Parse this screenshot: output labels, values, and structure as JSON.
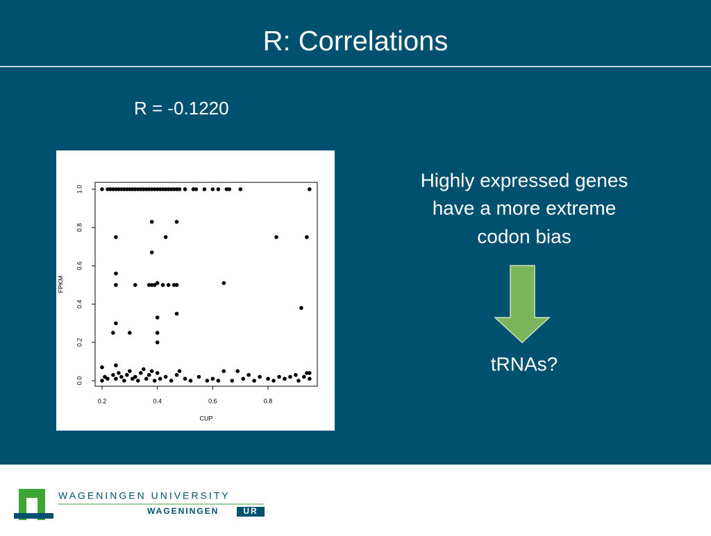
{
  "slide": {
    "title": "R: Correlations",
    "subtitle": "R = -0.1220",
    "text": [
      "Highly expressed genes",
      "have a more extreme",
      "codon bias"
    ],
    "note": "tRNAs?",
    "logo": {
      "name": "WAGENINGEN UNIVERSITY",
      "sub": "WAGENINGEN",
      "badge": "UR"
    }
  },
  "chart_data": {
    "type": "scatter",
    "xlabel": "CUP",
    "ylabel": "FPKM",
    "color": "#000000",
    "xlim": [
      0.175,
      0.978
    ],
    "ylim": [
      -0.029,
      1.036
    ],
    "xticks": [
      0.2,
      0.4,
      0.6,
      0.8
    ],
    "yticks": [
      {
        "value": 0,
        "label": "0.0"
      },
      0.2,
      0.4,
      0.6,
      0.8,
      {
        "value": 1,
        "label": "1.0"
      }
    ],
    "x": [
      0.2,
      0.22,
      0.23,
      0.24,
      0.25,
      0.26,
      0.27,
      0.28,
      0.29,
      0.3,
      0.31,
      0.32,
      0.33,
      0.34,
      0.35,
      0.36,
      0.37,
      0.38,
      0.39,
      0.4,
      0.41,
      0.42,
      0.43,
      0.44,
      0.45,
      0.46,
      0.47,
      0.48,
      0.5,
      0.53,
      0.54,
      0.57,
      0.6,
      0.62,
      0.65,
      0.66,
      0.7,
      0.95,
      0.25,
      0.38,
      0.47,
      0.43,
      0.83,
      0.94,
      0.38,
      0.25,
      0.25,
      0.32,
      0.37,
      0.38,
      0.39,
      0.4,
      0.42,
      0.44,
      0.46,
      0.47,
      0.64,
      0.92,
      0.4,
      0.47,
      0.25,
      0.24,
      0.3,
      0.4,
      0.4,
      0.2,
      0.2,
      0.21,
      0.22,
      0.24,
      0.25,
      0.25,
      0.26,
      0.27,
      0.28,
      0.29,
      0.3,
      0.31,
      0.32,
      0.33,
      0.34,
      0.35,
      0.36,
      0.37,
      0.38,
      0.39,
      0.4,
      0.41,
      0.43,
      0.45,
      0.47,
      0.48,
      0.5,
      0.52,
      0.55,
      0.58,
      0.6,
      0.62,
      0.64,
      0.67,
      0.69,
      0.71,
      0.73,
      0.75,
      0.77,
      0.8,
      0.82,
      0.84,
      0.86,
      0.88,
      0.9,
      0.91,
      0.93,
      0.94,
      0.95,
      0.95
    ],
    "y": [
      1,
      1,
      1,
      1,
      1,
      1,
      1,
      1,
      1,
      1,
      1,
      1,
      1,
      1,
      1,
      1,
      1,
      1,
      1,
      1,
      1,
      1,
      1,
      1,
      1,
      1,
      1,
      1,
      1,
      1,
      1,
      1,
      1,
      1,
      1,
      1,
      1,
      1,
      0.75,
      0.83,
      0.83,
      0.75,
      0.75,
      0.75,
      0.67,
      0.56,
      0.5,
      0.5,
      0.5,
      0.5,
      0.5,
      0.51,
      0.5,
      0.5,
      0.5,
      0.5,
      0.51,
      0.38,
      0.33,
      0.35,
      0.3,
      0.25,
      0.25,
      0.25,
      0.2,
      0.07,
      0,
      0.02,
      0.01,
      0.03,
      0.08,
      0.01,
      0.04,
      0.02,
      0,
      0.03,
      0.05,
      0.01,
      0.02,
      0,
      0.04,
      0.06,
      0.01,
      0.03,
      0.05,
      0,
      0.04,
      0.01,
      0.02,
      0,
      0.03,
      0.05,
      0.01,
      0,
      0.02,
      0,
      0.01,
      0,
      0.05,
      0,
      0.05,
      0.01,
      0.03,
      0,
      0.02,
      0.01,
      0,
      0.02,
      0.01,
      0.02,
      0.03,
      0,
      0.02,
      0.04,
      0.01,
      0.04
    ]
  }
}
